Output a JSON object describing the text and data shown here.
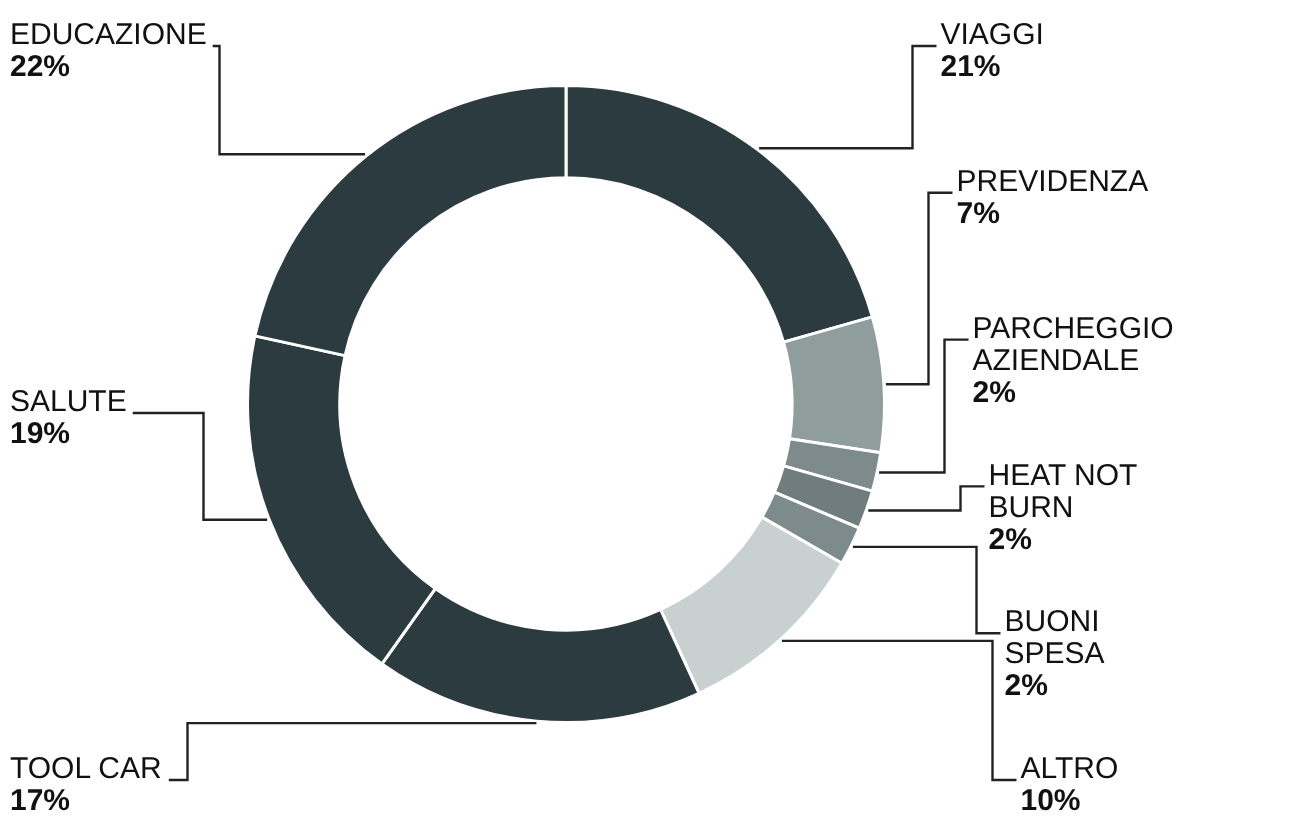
{
  "chart_data": {
    "type": "donut",
    "categories": [
      "VIAGGI",
      "PREVIDENZA",
      "PARCHEGGIO AZIENDALE",
      "HEAT NOT BURN",
      "BUONI SPESA",
      "ALTRO",
      "TOOL CAR",
      "SALUTE",
      "EDUCAZIONE"
    ],
    "values": [
      21,
      7,
      2,
      2,
      2,
      10,
      17,
      19,
      22
    ],
    "value_labels": [
      "21%",
      "7%",
      "2%",
      "2%",
      "2%",
      "10%",
      "17%",
      "19%",
      "22%"
    ],
    "colors": [
      "#2c3b40",
      "#8f9d9d",
      "#7d8b8c",
      "#6f7d7e",
      "#7d8b8c",
      "#c9d1d0",
      "#2c3b40",
      "#2c3b40",
      "#2c3b40"
    ],
    "legend": false
  }
}
